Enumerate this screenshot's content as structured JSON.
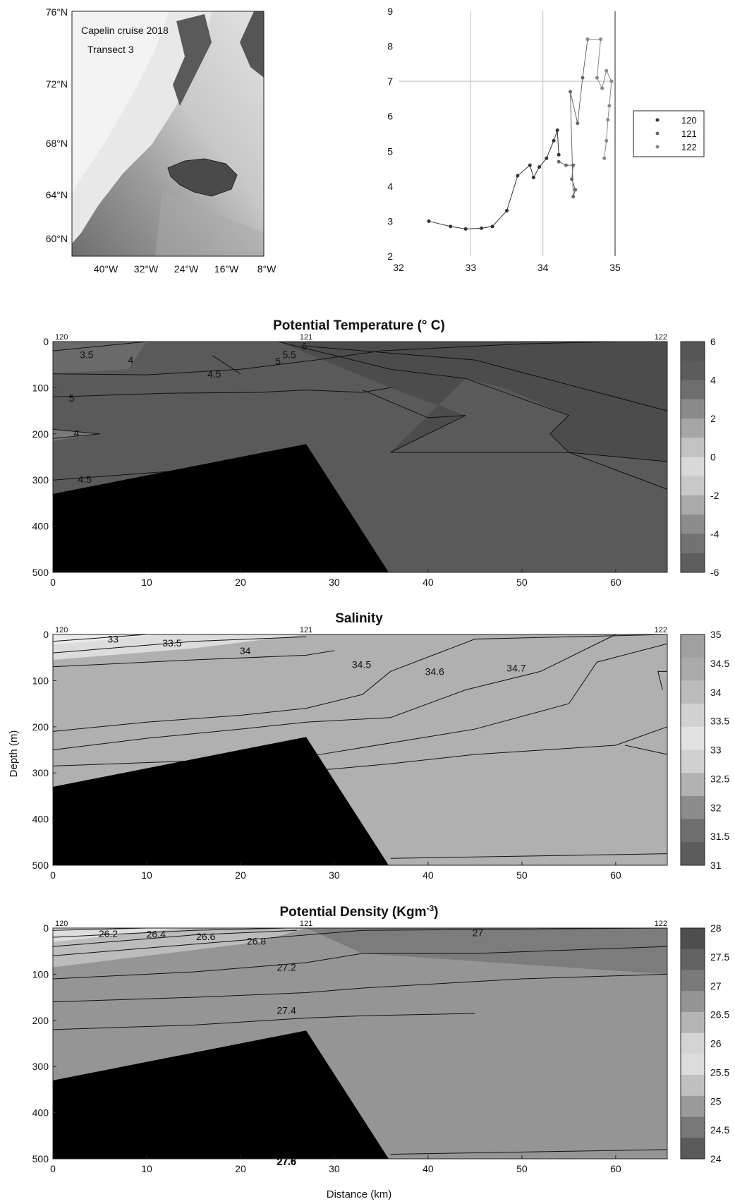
{
  "map": {
    "line1": "Capelin cruise 2018",
    "line2": "Transect 3",
    "lat_ticks": [
      "76°N",
      "72°N",
      "68°N",
      "64°N",
      "60°N"
    ],
    "lon_ticks": [
      "40°W",
      "32°W",
      "24°W",
      "16°W",
      "8°W"
    ]
  },
  "ts_plot": {
    "x_ticks": [
      "32",
      "33",
      "34",
      "35"
    ],
    "y_ticks": [
      "9",
      "8",
      "7",
      "6",
      "5",
      "4",
      "3",
      "2"
    ],
    "legend": [
      "120",
      "121",
      "122"
    ]
  },
  "sections": {
    "station_labels": [
      "120",
      "121",
      "122"
    ],
    "x_ticks": [
      "0",
      "10",
      "20",
      "30",
      "40",
      "50",
      "60"
    ],
    "y_ticks": [
      "0",
      "100",
      "200",
      "300",
      "400",
      "500"
    ],
    "ylabel": "Depth (m)",
    "xlabel": "Distance (km)"
  },
  "colors": {
    "seafloor": "#000000",
    "background": "#ffffff"
  },
  "chart_data": [
    {
      "type": "scatter",
      "id": "ts",
      "xlim": [
        32,
        35
      ],
      "ylim": [
        2,
        9
      ],
      "grid": "x-at-33-34-35, y-at-7",
      "legend_position": "right",
      "series": [
        {
          "name": "120",
          "x": [
            32.42,
            32.72,
            32.93,
            33.15,
            33.3,
            33.5,
            33.65,
            33.82,
            33.87,
            33.95,
            34.05,
            34.15,
            34.2,
            34.22
          ],
          "y": [
            3.0,
            2.85,
            2.78,
            2.8,
            2.85,
            3.3,
            4.3,
            4.6,
            4.25,
            4.55,
            4.8,
            5.3,
            5.6,
            4.9
          ]
        },
        {
          "name": "121",
          "x": [
            34.22,
            34.32,
            34.42,
            34.4,
            34.45,
            34.42,
            34.38,
            34.48,
            34.55,
            34.62
          ],
          "y": [
            4.7,
            4.6,
            4.6,
            4.2,
            3.9,
            3.7,
            6.7,
            5.8,
            7.1,
            8.2
          ]
        },
        {
          "name": "122",
          "x": [
            34.62,
            34.8,
            34.75,
            34.82,
            34.88,
            34.95,
            34.92,
            34.9,
            34.88,
            34.85
          ],
          "y": [
            8.2,
            8.2,
            7.1,
            6.8,
            7.3,
            7.0,
            6.3,
            5.9,
            5.3,
            4.8
          ]
        }
      ]
    },
    {
      "type": "contour",
      "id": "temperature",
      "title": "Potential Temperature (° C)",
      "xlim": [
        0,
        65.5
      ],
      "ylim": [
        500,
        0
      ],
      "colorbar_ticks": [
        "6",
        "4",
        "2",
        "0",
        "-2",
        "-4",
        "-6"
      ],
      "colorbar_range": [
        -6,
        6
      ],
      "contour_labels": [
        {
          "text": "3.5",
          "x": 3.6,
          "y": 28
        },
        {
          "text": "4",
          "x": 8.3,
          "y": 40
        },
        {
          "text": "4.5",
          "x": 17.2,
          "y": 70
        },
        {
          "text": "5",
          "x": 24,
          "y": 42
        },
        {
          "text": "5.5",
          "x": 25.2,
          "y": 28
        },
        {
          "text": "6",
          "x": 26.8,
          "y": 10
        },
        {
          "text": "5",
          "x": 2,
          "y": 122
        },
        {
          "text": "4",
          "x": 2.5,
          "y": 198
        },
        {
          "text": "4.5",
          "x": 3.4,
          "y": 298
        }
      ]
    },
    {
      "type": "contour",
      "id": "salinity",
      "title": "Salinity",
      "xlim": [
        0,
        65.5
      ],
      "ylim": [
        500,
        0
      ],
      "colorbar_ticks": [
        "35",
        "34.5",
        "34",
        "33.5",
        "33",
        "32.5",
        "32",
        "31.5",
        "31"
      ],
      "colorbar_range": [
        31,
        35
      ],
      "contour_labels": [
        {
          "text": "33",
          "x": 6.4,
          "y": 10
        },
        {
          "text": "33.5",
          "x": 12.7,
          "y": 18
        },
        {
          "text": "34",
          "x": 20.5,
          "y": 35
        },
        {
          "text": "34.5",
          "x": 32.9,
          "y": 65
        },
        {
          "text": "34.6",
          "x": 40.7,
          "y": 80
        },
        {
          "text": "34.7",
          "x": 49.4,
          "y": 73
        }
      ]
    },
    {
      "type": "contour",
      "id": "density",
      "title": "Potential Density (Kgm",
      "title_superscript": "-3",
      "title_suffix": ")",
      "xlim": [
        0,
        65.5
      ],
      "ylim": [
        500,
        0
      ],
      "colorbar_ticks": [
        "28",
        "27.5",
        "27",
        "26.5",
        "26",
        "25.5",
        "25",
        "24.5",
        "24"
      ],
      "colorbar_range": [
        24,
        28
      ],
      "contour_labels": [
        {
          "text": "26.2",
          "x": 5.9,
          "y": 12
        },
        {
          "text": "26.4",
          "x": 11,
          "y": 13
        },
        {
          "text": "26.6",
          "x": 16.3,
          "y": 18
        },
        {
          "text": "26.8",
          "x": 21.7,
          "y": 28
        },
        {
          "text": "27",
          "x": 45.3,
          "y": 10
        },
        {
          "text": "27.2",
          "x": 24.9,
          "y": 85
        },
        {
          "text": "27.4",
          "x": 24.9,
          "y": 178
        },
        {
          "text": "27.6",
          "x": 24.9,
          "y": 505
        }
      ]
    }
  ]
}
